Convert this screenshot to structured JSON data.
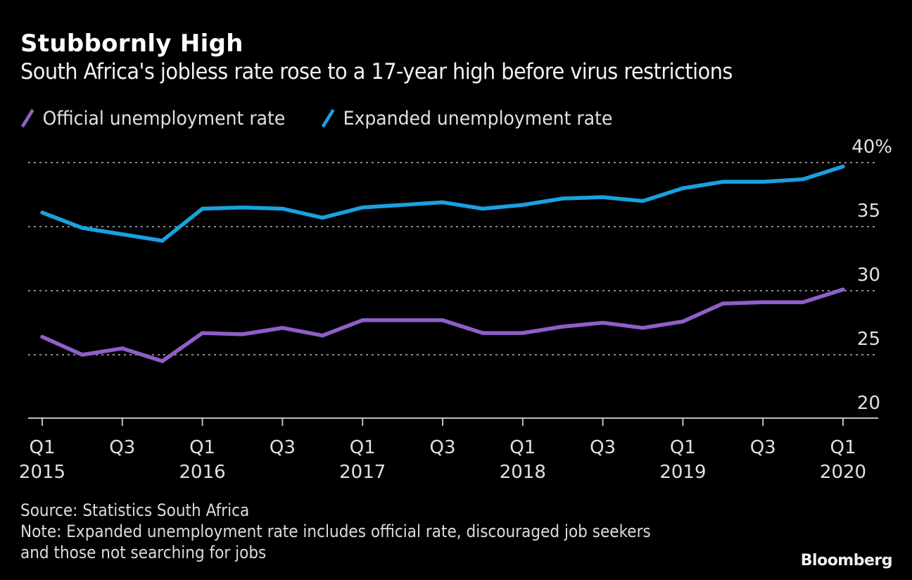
{
  "header": {
    "title": "Stubbornly High",
    "subtitle": "South Africa's jobless rate rose to a 17-year high before virus restrictions"
  },
  "footer": {
    "source": "Source: Statistics South Africa",
    "note_line1": "Note: Expanded unemployment rate includes official rate, discouraged job seekers",
    "note_line2": "and those not searching for jobs",
    "brand": "Bloomberg"
  },
  "chart_data": {
    "type": "line",
    "title": "Stubbornly High",
    "subtitle": "South Africa's jobless rate rose to a 17-year high before virus restrictions",
    "xlabel": "",
    "ylabel": "",
    "x": [
      "Q1 2015",
      "Q2 2015",
      "Q3 2015",
      "Q4 2015",
      "Q1 2016",
      "Q2 2016",
      "Q3 2016",
      "Q4 2016",
      "Q1 2017",
      "Q2 2017",
      "Q3 2017",
      "Q4 2017",
      "Q1 2018",
      "Q2 2018",
      "Q3 2018",
      "Q4 2018",
      "Q1 2019",
      "Q2 2019",
      "Q3 2019",
      "Q4 2019",
      "Q1 2020"
    ],
    "series": [
      {
        "name": "Official unemployment rate",
        "color": "#8e5fc8",
        "values": [
          26.4,
          25.0,
          25.5,
          24.5,
          26.7,
          26.6,
          27.1,
          26.5,
          27.7,
          27.7,
          27.7,
          26.7,
          26.7,
          27.2,
          27.5,
          27.1,
          27.6,
          29.0,
          29.1,
          29.1,
          30.1
        ]
      },
      {
        "name": "Expanded unemployment rate",
        "color": "#1aa1de",
        "values": [
          36.1,
          34.9,
          34.4,
          33.9,
          36.4,
          36.5,
          36.4,
          35.7,
          36.5,
          36.7,
          36.9,
          36.4,
          36.7,
          37.2,
          37.3,
          37.0,
          38.0,
          38.5,
          38.5,
          38.7,
          39.7
        ]
      }
    ],
    "ylim": [
      20,
      40
    ],
    "y_ticks": [
      {
        "value": 40,
        "label": "40%"
      },
      {
        "value": 35,
        "label": "35"
      },
      {
        "value": 30,
        "label": "30"
      },
      {
        "value": 25,
        "label": "25"
      },
      {
        "value": 20,
        "label": "20"
      }
    ],
    "x_ticks": [
      {
        "index": 0,
        "line1": "Q1",
        "line2": "2015"
      },
      {
        "index": 2,
        "line1": "Q3",
        "line2": ""
      },
      {
        "index": 4,
        "line1": "Q1",
        "line2": "2016"
      },
      {
        "index": 6,
        "line1": "Q3",
        "line2": ""
      },
      {
        "index": 8,
        "line1": "Q1",
        "line2": "2017"
      },
      {
        "index": 10,
        "line1": "Q3",
        "line2": ""
      },
      {
        "index": 12,
        "line1": "Q1",
        "line2": "2018"
      },
      {
        "index": 14,
        "line1": "Q3",
        "line2": ""
      },
      {
        "index": 16,
        "line1": "Q1",
        "line2": "2019"
      },
      {
        "index": 18,
        "line1": "Q3",
        "line2": ""
      },
      {
        "index": 20,
        "line1": "Q1",
        "line2": "2020"
      }
    ],
    "grid": true,
    "grid_style": "dotted",
    "legend_position": "top-left",
    "y_axis_position": "right"
  }
}
